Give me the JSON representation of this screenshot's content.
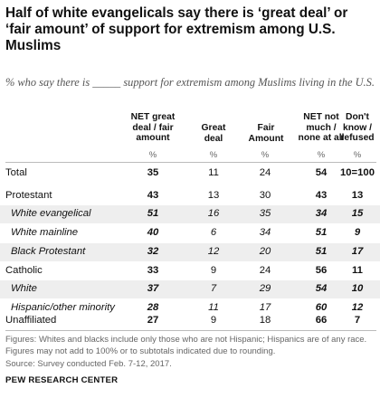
{
  "title": "Half of white evangelicals say there is ‘great deal’ or ‘fair amount’ of support for extremism among U.S. Muslims",
  "subtitle": "% who say there is _____ support for extremism among Muslims living in the U.S.",
  "colors": {
    "shade": "#eeeeee",
    "rule": "#bbbbbb",
    "text": "#111111",
    "note": "#666666"
  },
  "chart_data": {
    "type": "table",
    "columns": [
      {
        "line1": "NET great",
        "line2": "deal / fair",
        "line3": "amount"
      },
      {
        "line1": "Great",
        "line2": "deal"
      },
      {
        "line1": "Fair",
        "line2": "Amount"
      },
      {
        "line1": "NET not",
        "line2": "much /",
        "line3": "none at all"
      },
      {
        "line1": "Don't",
        "line2": "know /",
        "line3": "refused"
      }
    ],
    "unit": "%",
    "rows": [
      {
        "label": "Total",
        "values": [
          "35",
          "11",
          "24",
          "54",
          "10=100"
        ]
      },
      {
        "label": "Protestant",
        "values": [
          "43",
          "13",
          "30",
          "43",
          "13"
        ]
      },
      {
        "label": "White evangelical",
        "values": [
          "51",
          "16",
          "35",
          "34",
          "15"
        ]
      },
      {
        "label": "White mainline",
        "values": [
          "40",
          "6",
          "34",
          "51",
          "9"
        ]
      },
      {
        "label": "Black Protestant",
        "values": [
          "32",
          "12",
          "20",
          "51",
          "17"
        ]
      },
      {
        "label": "Catholic",
        "values": [
          "33",
          "9",
          "24",
          "56",
          "11"
        ]
      },
      {
        "label": "White",
        "values": [
          "37",
          "7",
          "29",
          "54",
          "10"
        ]
      },
      {
        "label": "Hispanic/other minority",
        "values": [
          "28",
          "11",
          "17",
          "60",
          "12"
        ]
      },
      {
        "label": "Unaffiliated",
        "values": [
          "27",
          "9",
          "18",
          "66",
          "7"
        ]
      }
    ]
  },
  "notes": {
    "line1": "Figures: Whites and blacks include only those who are not Hispanic; Hispanics are of any race.",
    "line2": "Figures may not add to 100% or to subtotals indicated due to rounding.",
    "source": "Source: Survey conducted Feb. 7-12, 2017.",
    "org": "PEW RESEARCH CENTER"
  }
}
